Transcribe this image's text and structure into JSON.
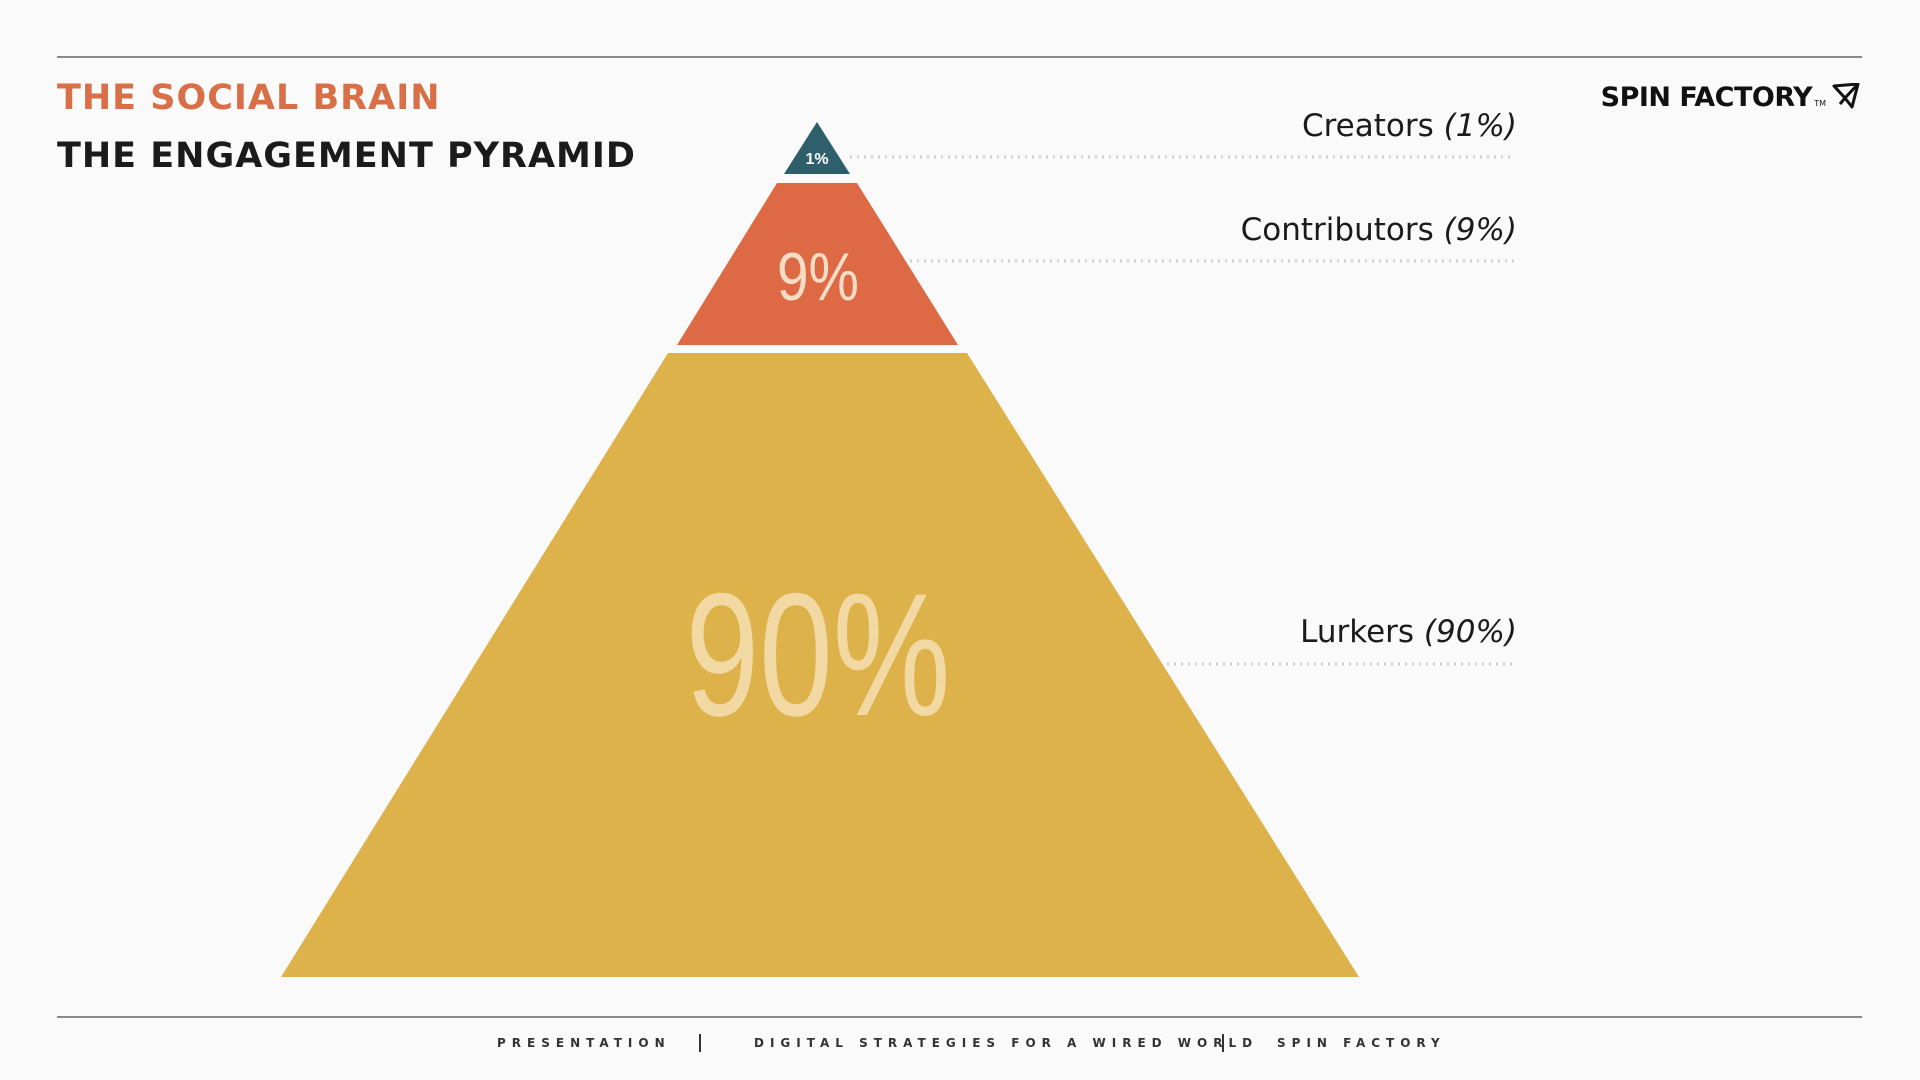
{
  "header": {
    "kicker": "THE SOCIAL BRAIN",
    "title": "THE ENGAGEMENT PYRAMID",
    "brand": "SPIN FACTORY",
    "brand_tm": "TM",
    "brand_icon": "paper-plane-icon"
  },
  "pyramid": {
    "tiers": [
      {
        "name": "Creators",
        "percent": 1,
        "label": "1%",
        "legend_name": "Creators",
        "legend_pct": "(1%)",
        "color": "#2e5f6b",
        "label_color": "#ffffff"
      },
      {
        "name": "Contributors",
        "percent": 9,
        "label": "9%",
        "legend_name": "Contributors",
        "legend_pct": "(9%)",
        "color": "#dd6a44",
        "label_color": "#f7dcc6"
      },
      {
        "name": "Lurkers",
        "percent": 90,
        "label": "90%",
        "legend_name": "Lurkers",
        "legend_pct": "(90%)",
        "color": "#ddb24a",
        "label_color": "#f2d9a3"
      }
    ]
  },
  "footer": {
    "left": "PRESENTATION",
    "center": "DIGITAL STRATEGIES FOR A WIRED WORLD",
    "right": "SPIN FACTORY"
  },
  "colors": {
    "kicker": "#d96f47",
    "background": "#fafafa",
    "leader": "#cfcfcf"
  }
}
